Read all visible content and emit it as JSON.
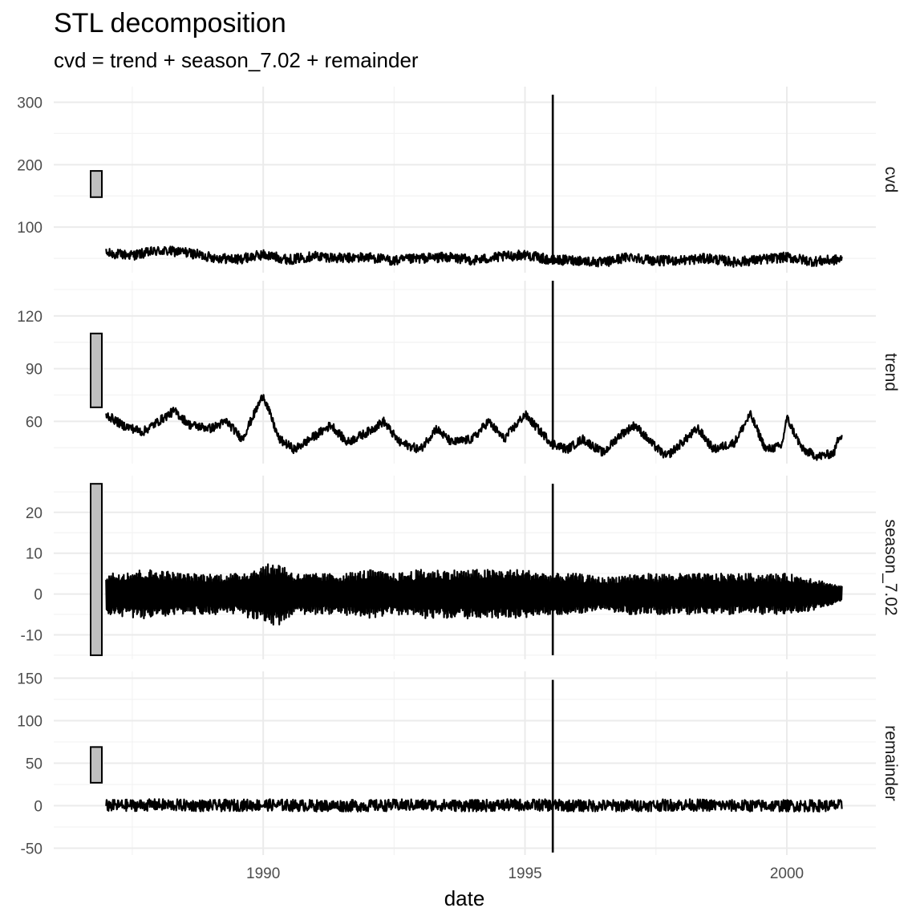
{
  "chart_data": {
    "type": "line",
    "title": "STL decomposition",
    "subtitle": "cvd = trend + season_7.02 + remainder",
    "xlabel": "date",
    "x_ticks": [
      "1990",
      "1995",
      "2000"
    ],
    "x_range": [
      1986.0,
      2001.7
    ],
    "grid": true,
    "panels": [
      {
        "name": "cvd",
        "ylim": [
          27,
          325
        ],
        "y_ticks": [
          100,
          200,
          300
        ],
        "scale_bar": [
          148,
          190
        ],
        "approx_range": [
          30,
          312
        ],
        "spike": {
          "x": 1995.53,
          "min": 40,
          "max": 312
        },
        "points": [
          [
            1987.0,
            58
          ],
          [
            1987.5,
            55
          ],
          [
            1988.0,
            62
          ],
          [
            1988.5,
            60
          ],
          [
            1989.0,
            52
          ],
          [
            1989.5,
            48
          ],
          [
            1990.0,
            56
          ],
          [
            1990.5,
            48
          ],
          [
            1991.0,
            54
          ],
          [
            1991.5,
            50
          ],
          [
            1992.0,
            52
          ],
          [
            1992.5,
            46
          ],
          [
            1993.0,
            50
          ],
          [
            1993.5,
            52
          ],
          [
            1994.0,
            47
          ],
          [
            1994.5,
            52
          ],
          [
            1995.0,
            56
          ],
          [
            1995.5,
            47
          ],
          [
            1996.0,
            47
          ],
          [
            1996.5,
            43
          ],
          [
            1997.0,
            53
          ],
          [
            1997.5,
            46
          ],
          [
            1998.0,
            47
          ],
          [
            1998.5,
            50
          ],
          [
            1999.0,
            44
          ],
          [
            1999.5,
            48
          ],
          [
            2000.0,
            52
          ],
          [
            2000.5,
            45
          ],
          [
            2001.0,
            48
          ]
        ]
      },
      {
        "name": "trend",
        "ylim": [
          36,
          140
        ],
        "y_ticks": [
          60,
          90,
          120
        ],
        "scale_bar": [
          68,
          110
        ],
        "approx_range": [
          37,
          140
        ],
        "spike": {
          "x": 1995.53,
          "min": 44,
          "max": 140
        },
        "points": [
          [
            1987.0,
            64
          ],
          [
            1987.3,
            58
          ],
          [
            1987.7,
            54
          ],
          [
            1988.0,
            60
          ],
          [
            1988.3,
            66
          ],
          [
            1988.6,
            58
          ],
          [
            1989.0,
            56
          ],
          [
            1989.3,
            60
          ],
          [
            1989.6,
            50
          ],
          [
            1990.0,
            75
          ],
          [
            1990.3,
            50
          ],
          [
            1990.6,
            44
          ],
          [
            1991.0,
            52
          ],
          [
            1991.3,
            58
          ],
          [
            1991.6,
            48
          ],
          [
            1992.0,
            54
          ],
          [
            1992.3,
            60
          ],
          [
            1992.6,
            48
          ],
          [
            1993.0,
            44
          ],
          [
            1993.3,
            56
          ],
          [
            1993.6,
            48
          ],
          [
            1994.0,
            50
          ],
          [
            1994.3,
            60
          ],
          [
            1994.6,
            50
          ],
          [
            1995.0,
            64
          ],
          [
            1995.3,
            54
          ],
          [
            1995.5,
            48
          ],
          [
            1995.8,
            44
          ],
          [
            1996.1,
            50
          ],
          [
            1996.5,
            42
          ],
          [
            1996.8,
            52
          ],
          [
            1997.1,
            58
          ],
          [
            1997.4,
            48
          ],
          [
            1997.7,
            40
          ],
          [
            1998.0,
            48
          ],
          [
            1998.3,
            56
          ],
          [
            1998.6,
            44
          ],
          [
            1999.0,
            48
          ],
          [
            1999.3,
            64
          ],
          [
            1999.6,
            44
          ],
          [
            1999.9,
            46
          ],
          [
            2000.0,
            62
          ],
          [
            2000.3,
            44
          ],
          [
            2000.6,
            40
          ],
          [
            2000.9,
            42
          ],
          [
            2001.0,
            52
          ]
        ]
      },
      {
        "name": "season_7.02",
        "ylim": [
          -16,
          29
        ],
        "y_ticks": [
          -10,
          0,
          10,
          20
        ],
        "scale_bar": [
          -15,
          27
        ],
        "approx_range": [
          -15,
          27
        ],
        "spike": {
          "x": 1995.53,
          "min": -15,
          "max": 27
        },
        "band": [
          [
            1987.0,
            5
          ],
          [
            1987.5,
            6
          ],
          [
            1988.0,
            6
          ],
          [
            1988.5,
            5
          ],
          [
            1989.0,
            5
          ],
          [
            1989.5,
            5
          ],
          [
            1990.0,
            7
          ],
          [
            1990.3,
            8
          ],
          [
            1990.6,
            5
          ],
          [
            1991.0,
            5
          ],
          [
            1991.5,
            5
          ],
          [
            1992.0,
            6
          ],
          [
            1992.5,
            5
          ],
          [
            1993.0,
            6
          ],
          [
            1993.5,
            6
          ],
          [
            1994.0,
            6
          ],
          [
            1994.5,
            6
          ],
          [
            1995.0,
            6
          ],
          [
            1995.5,
            5
          ],
          [
            1996.0,
            5
          ],
          [
            1996.5,
            4
          ],
          [
            1997.0,
            5
          ],
          [
            1997.5,
            5
          ],
          [
            1998.0,
            5
          ],
          [
            1998.5,
            5
          ],
          [
            1999.0,
            5
          ],
          [
            1999.5,
            5
          ],
          [
            2000.0,
            5
          ],
          [
            2000.5,
            4
          ],
          [
            2001.0,
            2
          ]
        ]
      },
      {
        "name": "remainder",
        "ylim": [
          -58,
          158
        ],
        "y_ticks": [
          -50,
          0,
          50,
          100,
          150
        ],
        "scale_bar": [
          27,
          69
        ],
        "approx_range": [
          -55,
          148
        ],
        "spike": {
          "x": 1995.53,
          "min": -55,
          "max": 148
        },
        "points": [
          [
            1987.0,
            0
          ],
          [
            1988.0,
            1
          ],
          [
            1989.0,
            0
          ],
          [
            1990.0,
            1
          ],
          [
            1991.0,
            0
          ],
          [
            1992.0,
            0
          ],
          [
            1993.0,
            1
          ],
          [
            1994.0,
            0
          ],
          [
            1995.0,
            1
          ],
          [
            1996.0,
            0
          ],
          [
            1997.0,
            0
          ],
          [
            1998.0,
            1
          ],
          [
            1999.0,
            0
          ],
          [
            2000.0,
            0
          ],
          [
            2001.0,
            0
          ]
        ]
      }
    ]
  }
}
